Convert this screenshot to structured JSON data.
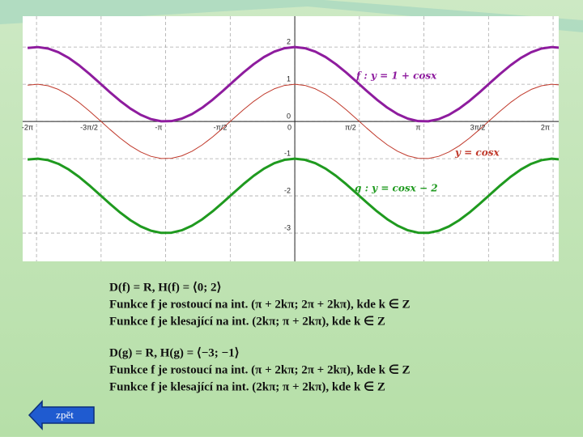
{
  "chart_data": {
    "type": "line",
    "x": [
      -6.5,
      -6.25,
      -6,
      -5.75,
      -5.5,
      -5.25,
      -5,
      -4.75,
      -4.5,
      -4.25,
      -4,
      -3.75,
      -3.5,
      -3.25,
      -3,
      -2.75,
      -2.5,
      -2.25,
      -2,
      -1.75,
      -1.5,
      -1.25,
      -1,
      -0.75,
      -0.5,
      -0.25,
      0,
      0.25,
      0.5,
      0.75,
      1,
      1.25,
      1.5,
      1.75,
      2,
      2.25,
      2.5,
      2.75,
      3,
      3.25,
      3.5,
      3.75,
      4,
      4.25,
      4.5,
      4.75,
      5,
      5.25,
      5.5,
      5.75,
      6,
      6.25,
      6.5
    ],
    "series": [
      {
        "name": "f : y = 1 + cosx",
        "color": "#8e1c9e",
        "values": [
          1.9766,
          1.9994,
          1.9602,
          1.8612,
          1.7087,
          1.5121,
          1.2837,
          1.0376,
          0.7892,
          0.554,
          0.3464,
          0.1794,
          0.0635,
          0.0059,
          0.01,
          0.0757,
          0.1989,
          0.3718,
          0.5839,
          0.8218,
          1.0707,
          1.3153,
          1.5403,
          1.7317,
          1.8776,
          1.9689,
          2,
          1.9689,
          1.8776,
          1.7317,
          1.5403,
          1.3153,
          1.0707,
          0.8218,
          0.5839,
          0.3718,
          0.1989,
          0.0757,
          0.01,
          0.0059,
          0.0635,
          0.1794,
          0.3464,
          0.554,
          0.7892,
          1.0376,
          1.2837,
          1.5121,
          1.7087,
          1.8612,
          1.9602,
          1.9994,
          1.9766
        ]
      },
      {
        "name": "y = cosx",
        "color": "#c0392b",
        "values": [
          0.9766,
          0.9994,
          0.9602,
          0.8612,
          0.7087,
          0.5121,
          0.2837,
          0.0376,
          -0.2108,
          -0.446,
          -0.6536,
          -0.8206,
          -0.9365,
          -0.9941,
          -0.99,
          -0.9243,
          -0.8011,
          -0.6282,
          -0.4161,
          -0.1782,
          0.0707,
          0.3153,
          0.5403,
          0.7317,
          0.8776,
          0.9689,
          1,
          0.9689,
          0.8776,
          0.7317,
          0.5403,
          0.3153,
          0.0707,
          -0.1782,
          -0.4161,
          -0.6282,
          -0.8011,
          -0.9243,
          -0.99,
          -0.9941,
          -0.9365,
          -0.8206,
          -0.6536,
          -0.446,
          -0.2108,
          0.0376,
          0.2837,
          0.5121,
          0.7087,
          0.8612,
          0.9602,
          0.9994,
          0.9766
        ]
      },
      {
        "name": "g : y = cosx − 2",
        "color": "#1f9a1f",
        "values": [
          -1.0234,
          -1.0006,
          -1.0398,
          -1.1388,
          -1.2913,
          -1.4879,
          -1.7163,
          -1.9624,
          -2.2108,
          -2.446,
          -2.6536,
          -2.8206,
          -2.9365,
          -2.9941,
          -2.99,
          -2.9243,
          -2.8011,
          -2.6282,
          -2.4161,
          -2.1782,
          -1.9293,
          -1.6847,
          -1.4597,
          -1.2683,
          -1.1224,
          -1.0311,
          -1,
          -1.0311,
          -1.1224,
          -1.2683,
          -1.4597,
          -1.6847,
          -1.9293,
          -2.1782,
          -2.4161,
          -2.6282,
          -2.8011,
          -2.9243,
          -2.99,
          -2.9941,
          -2.9365,
          -2.8206,
          -2.6536,
          -2.446,
          -2.2108,
          -1.9624,
          -1.7163,
          -1.4879,
          -1.2913,
          -1.1388,
          -1.0398,
          -1.0006,
          -1.0234
        ]
      }
    ],
    "xlim": [
      -6.62,
      6.42
    ],
    "ylim": [
      -3.76,
      2.83
    ],
    "xticks": [
      {
        "value": -6.2832,
        "label": "-2π"
      },
      {
        "value": -4.7124,
        "label": "-3π/2"
      },
      {
        "value": -3.1416,
        "label": "-π"
      },
      {
        "value": -1.5708,
        "label": "-π/2"
      },
      0,
      {
        "value": 1.5708,
        "label": "π/2"
      },
      {
        "value": 3.1416,
        "label": "π"
      },
      {
        "value": 4.7124,
        "label": "3π/2"
      },
      {
        "value": 6.2832,
        "label": "2π"
      }
    ],
    "yticks": [
      2,
      1,
      0,
      -1,
      -2,
      -3
    ],
    "grid": true
  },
  "text": {
    "blocks": [
      [
        "D(f) = R,  H(f) = ⟨0; 2⟩",
        "Funkce f je rostoucí na int.  (π + 2kπ;  2π + 2kπ), kde k ∈ Z",
        "Funkce f je klesající na int.  (2kπ;  π + 2kπ), kde k ∈ Z"
      ],
      [
        "D(g) = R,  H(g) = ⟨−3; −1⟩",
        "Funkce f je rostoucí na int.  (π + 2kπ;  2π + 2kπ), kde k ∈ Z",
        "Funkce f je klesající na int.  (2kπ;  π + 2kπ), kde k ∈ Z"
      ]
    ]
  },
  "button": {
    "label": "zpět"
  }
}
